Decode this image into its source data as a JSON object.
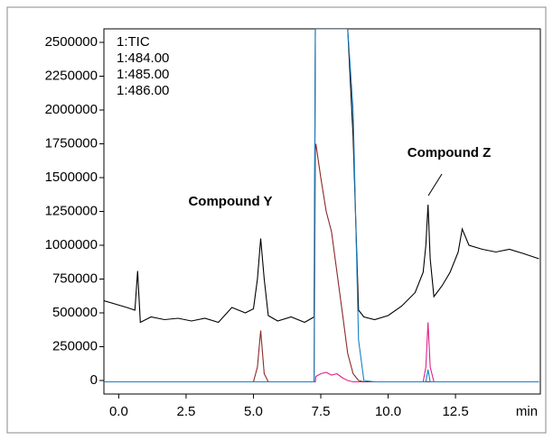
{
  "chart_data": {
    "type": "line",
    "x": [
      -0.55,
      0.3,
      0.6,
      0.7,
      0.8,
      1.2,
      1.7,
      2.2,
      2.7,
      3.2,
      3.7,
      4.2,
      4.7,
      5.0,
      5.15,
      5.27,
      5.4,
      5.55,
      5.9,
      6.4,
      6.9,
      7.25,
      7.3,
      7.32,
      7.5,
      7.7,
      7.9,
      8.1,
      8.3,
      8.5,
      8.7,
      8.9,
      9.1,
      9.5,
      10.0,
      10.5,
      11.0,
      11.3,
      11.4,
      11.48,
      11.56,
      11.7,
      12.0,
      12.3,
      12.6,
      12.75,
      13.0,
      13.5,
      14.0,
      14.5,
      15.0,
      15.6
    ],
    "series": [
      {
        "name": "1:TIC",
        "color": "#000000",
        "values": [
          590000,
          540000,
          520000,
          810000,
          430000,
          470000,
          450000,
          460000,
          440000,
          460000,
          430000,
          540000,
          500000,
          530000,
          750000,
          1050000,
          750000,
          480000,
          440000,
          470000,
          430000,
          470000,
          2600000,
          2600000,
          2600000,
          2600000,
          2600000,
          2600000,
          2600000,
          2600000,
          1800000,
          520000,
          470000,
          450000,
          480000,
          550000,
          650000,
          800000,
          1000000,
          1300000,
          900000,
          620000,
          700000,
          800000,
          950000,
          1120000,
          1000000,
          970000,
          950000,
          970000,
          940000,
          900000
        ]
      },
      {
        "name": "1:484.00",
        "color": "#e0218a",
        "values": [
          -10000,
          -10000,
          -10000,
          -10000,
          -10000,
          -10000,
          -10000,
          -10000,
          -10000,
          -10000,
          -10000,
          -10000,
          -10000,
          -10000,
          -10000,
          -10000,
          -10000,
          -10000,
          -10000,
          -10000,
          -10000,
          -10000,
          -10000,
          30000,
          50000,
          60000,
          40000,
          50000,
          20000,
          0,
          -10000,
          -10000,
          -10000,
          -10000,
          -10000,
          -10000,
          -10000,
          -10000,
          100000,
          430000,
          100000,
          -10000,
          -10000,
          -10000,
          -10000,
          -10000,
          -10000,
          -10000,
          -10000,
          -10000,
          -10000,
          -10000
        ]
      },
      {
        "name": "1:486.00",
        "color": "#8b2a2a",
        "values": [
          -10000,
          -10000,
          -10000,
          -10000,
          -10000,
          -10000,
          -10000,
          -10000,
          -10000,
          -10000,
          -10000,
          -10000,
          -10000,
          -10000,
          100000,
          370000,
          50000,
          -10000,
          -10000,
          -10000,
          -10000,
          -10000,
          1700000,
          1750000,
          1500000,
          1250000,
          1100000,
          800000,
          500000,
          200000,
          50000,
          0,
          -10000,
          -10000,
          -10000,
          -10000,
          -10000,
          -10000,
          -10000,
          -10000,
          -10000,
          -10000,
          -10000,
          -10000,
          -10000,
          -10000,
          -10000,
          -10000,
          -10000,
          -10000,
          -10000,
          -10000
        ]
      },
      {
        "name": "1:485.00",
        "color": "#1a7fc4",
        "values": [
          -10000,
          -10000,
          -10000,
          -10000,
          -10000,
          -10000,
          -10000,
          -10000,
          -10000,
          -10000,
          -10000,
          -10000,
          -10000,
          -10000,
          -10000,
          -10000,
          -10000,
          -10000,
          -10000,
          -10000,
          -10000,
          -10000,
          2600000,
          2600000,
          2600000,
          2600000,
          2600000,
          2600000,
          2600000,
          2600000,
          2000000,
          300000,
          0,
          -10000,
          -10000,
          -10000,
          -10000,
          -10000,
          -10000,
          80000,
          -10000,
          -10000,
          -10000,
          -10000,
          -10000,
          -10000,
          -10000,
          -10000,
          -10000,
          -10000,
          -10000,
          -10000
        ]
      }
    ],
    "xlim": [
      -0.55,
      15.65
    ],
    "ylim": [
      -100000,
      2600000
    ],
    "xticks": [
      {
        "value": 0,
        "label": "0.0"
      },
      2.5,
      {
        "value": 5,
        "label": "5.0"
      },
      7.5,
      {
        "value": 10,
        "label": "10.0"
      },
      12.5
    ],
    "yticks": [
      0,
      250000,
      500000,
      750000,
      1000000,
      1250000,
      1500000,
      1750000,
      2000000,
      2250000,
      2500000
    ],
    "x_unit": "min",
    "annotations": [
      "Compound Y",
      "Compound Z"
    ]
  }
}
